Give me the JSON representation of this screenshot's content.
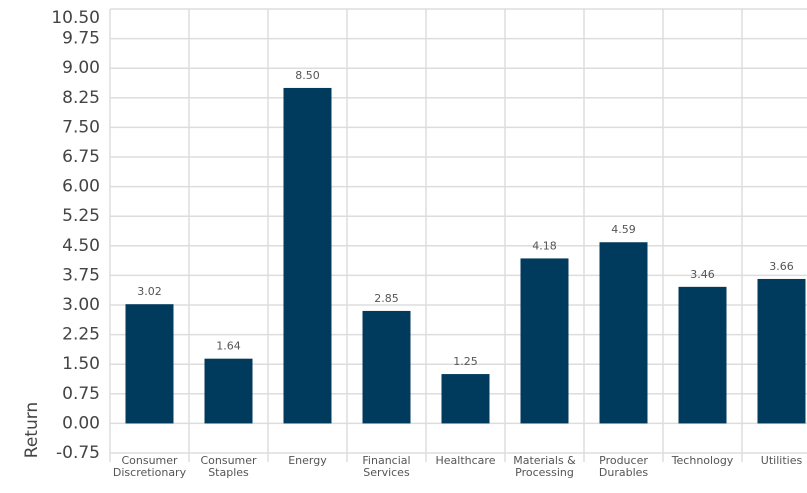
{
  "chart_data": {
    "type": "bar",
    "y_label": "Return",
    "categories": [
      "Consumer Discretionary",
      "Consumer Staples",
      "Energy",
      "Financial Services",
      "Healthcare",
      "Materials & Processing",
      "Producer Durables",
      "Technology",
      "Utilities"
    ],
    "values": [
      3.02,
      1.64,
      8.5,
      2.85,
      1.25,
      4.18,
      4.59,
      3.46,
      3.66
    ],
    "value_labels": [
      "3.02",
      "1.64",
      "8.50",
      "2.85",
      "1.25",
      "4.18",
      "4.59",
      "3.46",
      "3.66"
    ],
    "color": "#003a5c",
    "ylim": [
      -0.75,
      10.5
    ],
    "yticks": [
      {
        "value": -0.75,
        "label": "-0.75"
      },
      {
        "value": 0,
        "label": "0.00"
      },
      {
        "value": 0.75,
        "label": "0.75"
      },
      {
        "value": 1.5,
        "label": "1.50"
      },
      {
        "value": 2.25,
        "label": "2.25"
      },
      {
        "value": 3,
        "label": "3.00"
      },
      {
        "value": 3.75,
        "label": "3.75"
      },
      {
        "value": 4.5,
        "label": "4.50"
      },
      {
        "value": 5.25,
        "label": "5.25"
      },
      {
        "value": 6,
        "label": "6.00"
      },
      {
        "value": 6.75,
        "label": "6.75"
      },
      {
        "value": 7.5,
        "label": "7.50"
      },
      {
        "value": 8.25,
        "label": "8.25"
      },
      {
        "value": 9,
        "label": "9.00"
      },
      {
        "value": 9.75,
        "label": "9.75"
      },
      {
        "value": 10.5,
        "label": "10.50"
      }
    ],
    "grid": true
  }
}
